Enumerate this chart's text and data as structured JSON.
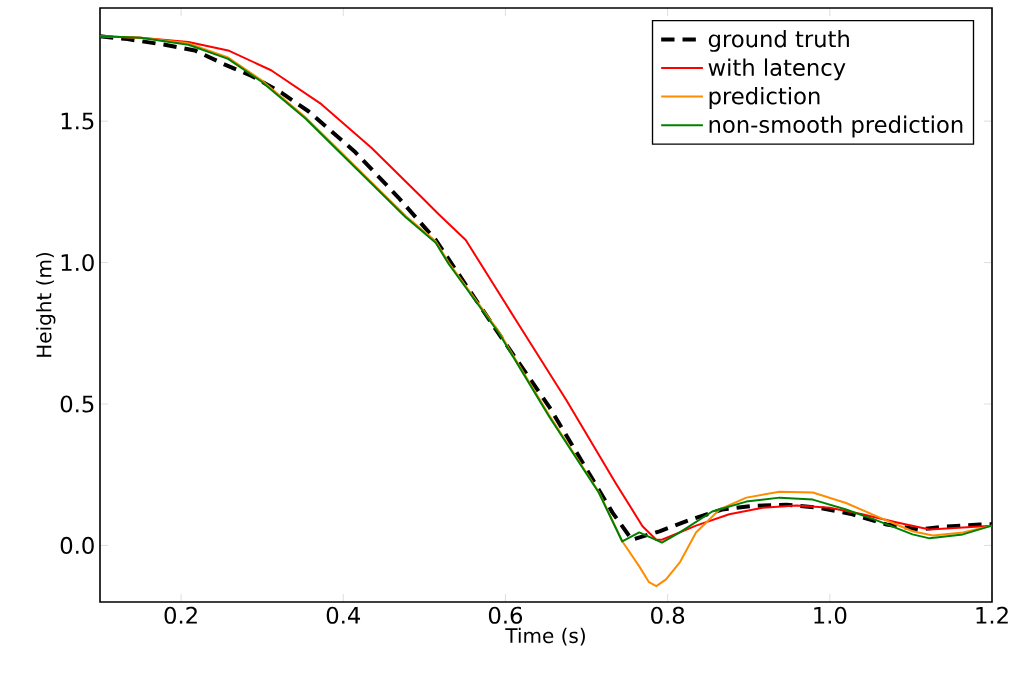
{
  "chart_data": {
    "type": "line",
    "xlabel": "Time (s)",
    "ylabel": "Height (m)",
    "xlim": [
      0.1,
      1.2
    ],
    "ylim": [
      -0.2,
      1.9
    ],
    "xticks": [
      {
        "value": 0.2,
        "label": "0.2"
      },
      {
        "value": 0.4,
        "label": "0.4"
      },
      {
        "value": 0.6,
        "label": "0.6"
      },
      {
        "value": 0.8,
        "label": "0.8"
      },
      {
        "value": 1.0,
        "label": "1.0"
      },
      {
        "value": 1.2,
        "label": "1.2"
      }
    ],
    "yticks": [
      {
        "value": 0.0,
        "label": "0.0"
      },
      {
        "value": 0.5,
        "label": "0.5"
      },
      {
        "value": 1.0,
        "label": "1.0"
      },
      {
        "value": 1.5,
        "label": "1.5"
      }
    ],
    "legend": "top right",
    "grid": false,
    "marker": "none",
    "series": [
      {
        "name": "ground truth",
        "color": "#000000",
        "line_style": "dashed",
        "x": [
          0.1,
          0.134,
          0.18,
          0.217,
          0.254,
          0.287,
          0.324,
          0.357,
          0.415,
          0.468,
          0.514,
          0.583,
          0.654,
          0.732,
          0.756,
          0.79,
          0.827,
          0.867,
          0.905,
          0.947,
          0.987,
          1.028,
          1.07,
          1.11,
          1.144,
          1.185,
          1.2
        ],
        "values": [
          1.8,
          1.79,
          1.77,
          1.75,
          1.7,
          1.66,
          1.6,
          1.535,
          1.39,
          1.23,
          1.08,
          0.785,
          0.49,
          0.116,
          0.02,
          0.05,
          0.09,
          0.127,
          0.14,
          0.144,
          0.133,
          0.11,
          0.074,
          0.056,
          0.067,
          0.074,
          0.075
        ]
      },
      {
        "name": "with latency",
        "color": "#ff0000",
        "line_style": "solid",
        "x": [
          0.1,
          0.15,
          0.209,
          0.258,
          0.311,
          0.373,
          0.435,
          0.497,
          0.518,
          0.551,
          0.613,
          0.675,
          0.736,
          0.769,
          0.786,
          0.793,
          0.835,
          0.876,
          0.917,
          0.959,
          1.0,
          1.04,
          1.083,
          1.123,
          1.164,
          1.2
        ],
        "values": [
          1.8,
          1.795,
          1.78,
          1.75,
          1.68,
          1.56,
          1.405,
          1.23,
          1.17,
          1.08,
          0.796,
          0.514,
          0.22,
          0.068,
          0.02,
          0.02,
          0.07,
          0.11,
          0.133,
          0.141,
          0.133,
          0.11,
          0.081,
          0.056,
          0.063,
          0.07
        ]
      },
      {
        "name": "prediction",
        "color": "#ff8c00",
        "line_style": "solid",
        "x": [
          0.1,
          0.15,
          0.209,
          0.258,
          0.299,
          0.353,
          0.415,
          0.477,
          0.514,
          0.53,
          0.592,
          0.654,
          0.715,
          0.744,
          0.765,
          0.777,
          0.786,
          0.798,
          0.815,
          0.835,
          0.864,
          0.897,
          0.938,
          0.979,
          1.02,
          1.061,
          1.102,
          1.127,
          1.164,
          1.2
        ],
        "values": [
          1.8,
          1.795,
          1.775,
          1.725,
          1.645,
          1.515,
          1.34,
          1.165,
          1.075,
          1.0,
          0.755,
          0.46,
          0.19,
          0.015,
          -0.074,
          -0.13,
          -0.144,
          -0.12,
          -0.06,
          0.046,
          0.127,
          0.169,
          0.19,
          0.187,
          0.15,
          0.099,
          0.05,
          0.035,
          0.046,
          0.07
        ]
      },
      {
        "name": "non-smooth prediction",
        "color": "#008000",
        "line_style": "solid",
        "x": [
          0.1,
          0.15,
          0.209,
          0.258,
          0.299,
          0.353,
          0.415,
          0.477,
          0.514,
          0.53,
          0.592,
          0.654,
          0.715,
          0.744,
          0.765,
          0.793,
          0.815,
          0.855,
          0.897,
          0.938,
          0.979,
          1.02,
          1.061,
          1.102,
          1.123,
          1.164,
          1.2
        ],
        "values": [
          1.8,
          1.795,
          1.77,
          1.72,
          1.64,
          1.51,
          1.335,
          1.16,
          1.07,
          0.995,
          0.75,
          0.455,
          0.187,
          0.014,
          0.046,
          0.01,
          0.046,
          0.12,
          0.155,
          0.169,
          0.162,
          0.127,
          0.085,
          0.039,
          0.025,
          0.039,
          0.07
        ]
      }
    ]
  }
}
